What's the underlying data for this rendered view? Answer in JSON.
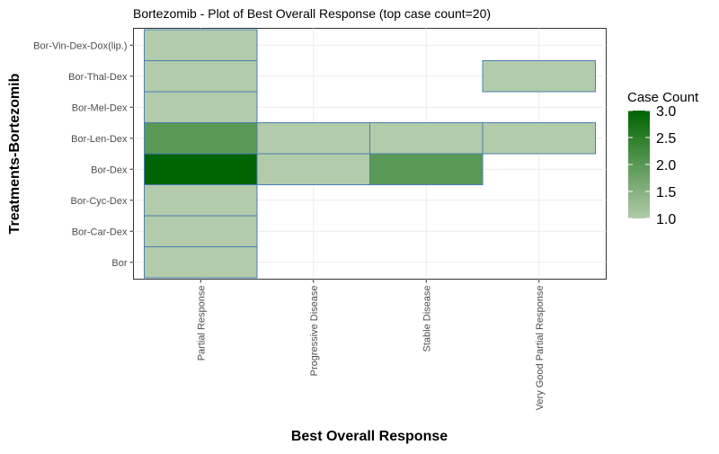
{
  "chart_data": {
    "type": "heatmap",
    "title": "Bortezomib - Plot of Best Overall Response (top case count=20)",
    "xlabel": "Best Overall Response",
    "ylabel": "Treatments-Bortezomib",
    "x_categories": [
      "Partial Response",
      "Progressive Disease",
      "Stable Disease",
      "Very Good Partial Response"
    ],
    "y_categories": [
      "Bor",
      "Bor-Car-Dex",
      "Bor-Cyc-Dex",
      "Bor-Dex",
      "Bor-Len-Dex",
      "Bor-Mel-Dex",
      "Bor-Thal-Dex",
      "Bor-Vin-Dex-Dox(lip.)"
    ],
    "cells": [
      {
        "x": "Partial Response",
        "y": "Bor",
        "value": 1
      },
      {
        "x": "Partial Response",
        "y": "Bor-Car-Dex",
        "value": 1
      },
      {
        "x": "Partial Response",
        "y": "Bor-Cyc-Dex",
        "value": 1
      },
      {
        "x": "Partial Response",
        "y": "Bor-Dex",
        "value": 3
      },
      {
        "x": "Partial Response",
        "y": "Bor-Len-Dex",
        "value": 2
      },
      {
        "x": "Partial Response",
        "y": "Bor-Mel-Dex",
        "value": 1
      },
      {
        "x": "Partial Response",
        "y": "Bor-Thal-Dex",
        "value": 1
      },
      {
        "x": "Partial Response",
        "y": "Bor-Vin-Dex-Dox(lip.)",
        "value": 1
      },
      {
        "x": "Progressive Disease",
        "y": "Bor-Dex",
        "value": 1
      },
      {
        "x": "Progressive Disease",
        "y": "Bor-Len-Dex",
        "value": 1
      },
      {
        "x": "Stable Disease",
        "y": "Bor-Dex",
        "value": 2
      },
      {
        "x": "Stable Disease",
        "y": "Bor-Len-Dex",
        "value": 1
      },
      {
        "x": "Very Good Partial Response",
        "y": "Bor-Len-Dex",
        "value": 1
      },
      {
        "x": "Very Good Partial Response",
        "y": "Bor-Thal-Dex",
        "value": 1
      }
    ],
    "legend": {
      "title": "Case Count",
      "position": "right",
      "range": [
        1.0,
        3.0
      ],
      "ticks": [
        "1.0",
        "1.5",
        "2.0",
        "2.5",
        "3.0"
      ],
      "color_low": "#b2cbaa",
      "color_high": "#006400"
    },
    "cell_border_color": "#4a7fb0",
    "grid": true
  }
}
